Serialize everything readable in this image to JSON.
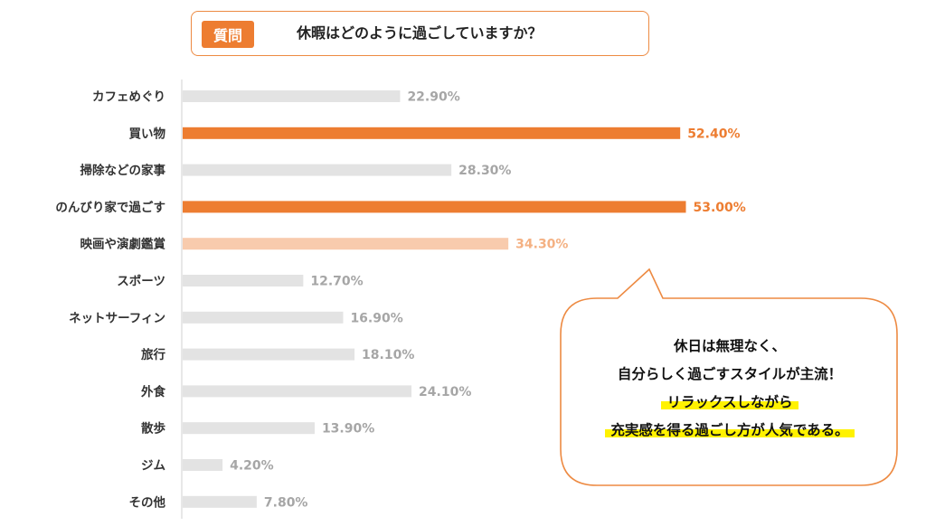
{
  "question": {
    "badge": "質問",
    "text": "休暇はどのように過ごしていますか？"
  },
  "chart_data": {
    "type": "bar",
    "orientation": "horizontal",
    "title": "休暇はどのように過ごしていますか？",
    "xlim": [
      0,
      60
    ],
    "unit": "%",
    "categories": [
      "カフェめぐり",
      "買い物",
      "掃除などの家事",
      "のんびり家で過ごす",
      "映画や演劇鑑賞",
      "スポーツ",
      "ネットサーフィン",
      "旅行",
      "外食",
      "散歩",
      "ジム",
      "その他"
    ],
    "values": [
      22.9,
      52.4,
      28.3,
      53.0,
      34.3,
      12.7,
      16.9,
      18.1,
      24.1,
      13.9,
      4.2,
      7.8
    ],
    "value_labels": [
      "22.90%",
      "52.40%",
      "28.30%",
      "53.00%",
      "34.30%",
      "12.70%",
      "16.90%",
      "18.10%",
      "24.10%",
      "13.90%",
      "4.20%",
      "7.80%"
    ],
    "highlight": [
      "none",
      "strong",
      "none",
      "strong",
      "light",
      "none",
      "none",
      "none",
      "none",
      "none",
      "none",
      "none"
    ]
  },
  "colors": {
    "strong": "#ed7d31",
    "light": "#f8cbad",
    "none": "#e3e3e3",
    "label_none": "#a6a6a6",
    "label_light": "#f4b183",
    "label_strong": "#ed7d31",
    "highlighter": "#fff200"
  },
  "callout": {
    "lines": [
      "休日は無理なく、",
      "自分らしく過ごすスタイルが主流！",
      "リラックスしながら",
      "充実感を得る過ごし方が人気である。"
    ]
  }
}
